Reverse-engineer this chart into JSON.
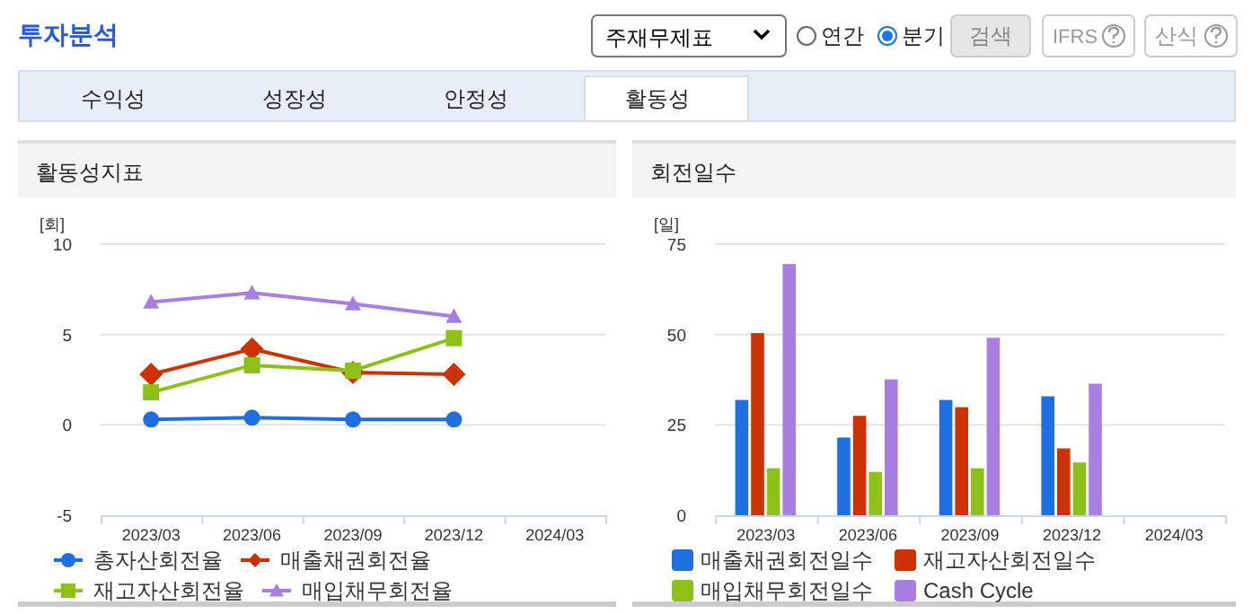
{
  "chart_data": [
    {
      "type": "other",
      "title": "투자분석",
      "annotations": [
        "주재무제표",
        "연간",
        "분기",
        "검색",
        "IFRS",
        "산식",
        "수익성",
        "성장성",
        "안정성",
        "활동성"
      ]
    },
    {
      "type": "line",
      "title": "활동성지표",
      "ylabel": "[회]",
      "categories": [
        "2023/03",
        "2023/06",
        "2023/09",
        "2023/12",
        "2024/03"
      ],
      "ylim": [
        -5,
        10
      ],
      "yticks": [
        -5,
        0,
        5,
        10
      ],
      "grid": "y",
      "legend": "bottom",
      "series": [
        {
          "name": "총자산회전율",
          "color": "#1f6fe0",
          "marker": "circle",
          "values": [
            0.3,
            0.4,
            0.3,
            0.3,
            null
          ]
        },
        {
          "name": "매출채권회전율",
          "color": "#cc3300",
          "marker": "diamond",
          "values": [
            2.8,
            4.2,
            2.9,
            2.8,
            null
          ]
        },
        {
          "name": "재고자산회전율",
          "color": "#8dc11a",
          "marker": "square",
          "values": [
            1.8,
            3.3,
            3.0,
            4.8,
            null
          ]
        },
        {
          "name": "매입채무회전율",
          "color": "#a87ee0",
          "marker": "triangle",
          "values": [
            6.8,
            7.3,
            6.7,
            6.0,
            null
          ]
        }
      ]
    },
    {
      "type": "bar",
      "title": "회전일수",
      "ylabel": "[일]",
      "categories": [
        "2023/03",
        "2023/06",
        "2023/09",
        "2023/12",
        "2024/03"
      ],
      "ylim": [
        0,
        75
      ],
      "yticks": [
        0,
        25,
        50,
        75
      ],
      "grid": "y",
      "legend": "bottom",
      "series": [
        {
          "name": "매출채권회전일수",
          "color": "#1f6fe0",
          "values": [
            31.9,
            21.5,
            31.9,
            32.9,
            null
          ]
        },
        {
          "name": "재고자산회전일수",
          "color": "#cc3300",
          "values": [
            50.4,
            27.5,
            29.9,
            18.5,
            null
          ]
        },
        {
          "name": "매입채무회전일수",
          "color": "#8dc11a",
          "values": [
            13.0,
            12.0,
            13.0,
            14.6,
            null
          ]
        },
        {
          "name": "Cash Cycle",
          "color": "#a87ee0",
          "values": [
            69.5,
            37.6,
            49.1,
            36.4,
            null
          ]
        }
      ]
    }
  ]
}
